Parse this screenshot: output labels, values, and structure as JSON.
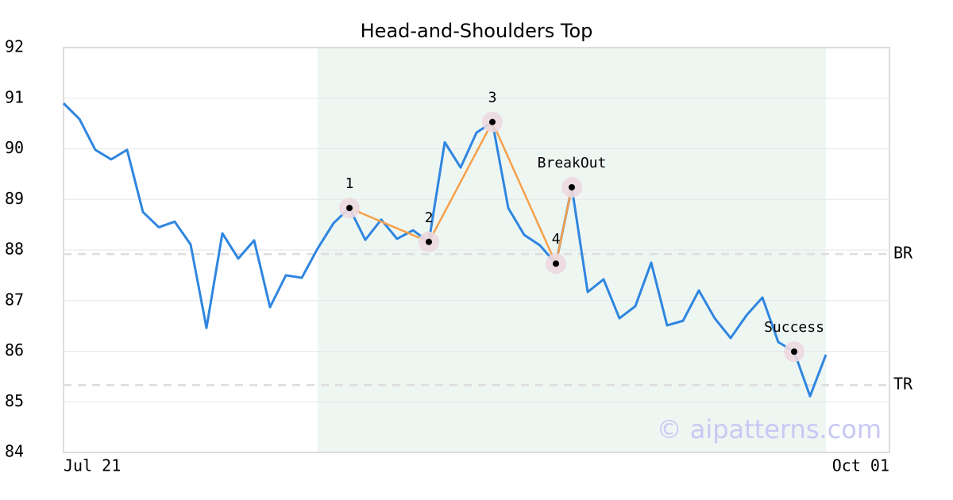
{
  "chart_data": {
    "type": "line",
    "title": "Head-and-Shoulders Top",
    "categories": [
      "Jul 21",
      null,
      null,
      null,
      null,
      null,
      null,
      null,
      null,
      null,
      null,
      null,
      null,
      null,
      null,
      null,
      null,
      null,
      null,
      null,
      null,
      null,
      null,
      null,
      null,
      null,
      null,
      null,
      null,
      null,
      null,
      null,
      null,
      null,
      null,
      null,
      null,
      null,
      null,
      null,
      null,
      null,
      null,
      null,
      null,
      null,
      null,
      null,
      null,
      null,
      null,
      null,
      "Oct 01"
    ],
    "values": [
      90.9,
      90.59,
      89.98,
      89.79,
      89.98,
      88.75,
      88.45,
      88.56,
      88.11,
      86.46,
      88.33,
      87.83,
      88.19,
      86.87,
      87.5,
      87.45,
      88.03,
      88.53,
      88.83,
      88.2,
      88.6,
      88.22,
      88.39,
      88.16,
      90.13,
      89.63,
      90.32,
      90.53,
      88.83,
      88.3,
      88.09,
      87.73,
      89.24,
      87.17,
      87.42,
      86.65,
      86.89,
      87.75,
      86.51,
      86.6,
      87.2,
      86.65,
      86.26,
      86.71,
      87.06,
      86.18,
      85.99,
      85.11,
      85.93,
      null,
      null,
      null,
      null
    ],
    "color": "#2f86e0",
    "ylim": [
      84,
      92
    ],
    "yticks": [
      84,
      85,
      86,
      87,
      88,
      89,
      90,
      91,
      92
    ],
    "grid": true,
    "highlight": [
      16,
      48
    ],
    "highlight_color": "#eef6f2",
    "pattern_color": "#f5a04a",
    "pattern_points": [
      {
        "label": "1",
        "x": 18,
        "value": 88.83
      },
      {
        "label": "2",
        "x": 23,
        "value": 88.16
      },
      {
        "label": "3",
        "x": 27,
        "value": 90.53
      },
      {
        "label": "4",
        "x": 31,
        "value": 87.73
      },
      {
        "label": "BreakOut",
        "x": 32,
        "value": 89.24
      }
    ],
    "success": {
      "label": "Success",
      "x": 46,
      "value": 85.99
    },
    "levels": [
      {
        "label": "BR",
        "value": 87.92
      },
      {
        "label": "TR",
        "value": 85.33
      }
    ],
    "watermark": "© aipatterns.com"
  }
}
